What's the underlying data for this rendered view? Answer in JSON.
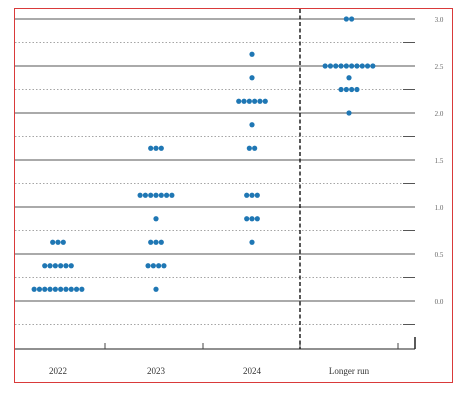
{
  "chart_data": {
    "type": "scatter",
    "title": "",
    "xlabel": "",
    "ylabel": "",
    "categories": [
      "2022",
      "2023",
      "2024",
      "Longer run"
    ],
    "ylim": [
      -0.45,
      3.0
    ],
    "yticks": [
      "0.0",
      "0.5",
      "1.0",
      "1.5",
      "2.0",
      "2.5",
      "3.0"
    ],
    "minor_step": 0.25,
    "divider_after_category": "2024",
    "dot_color": "#1f77b4",
    "points": [
      {
        "category": "2022",
        "value": 0.125,
        "count": 10
      },
      {
        "category": "2022",
        "value": 0.375,
        "count": 6
      },
      {
        "category": "2022",
        "value": 0.625,
        "count": 3
      },
      {
        "category": "2023",
        "value": 0.125,
        "count": 1
      },
      {
        "category": "2023",
        "value": 0.375,
        "count": 4
      },
      {
        "category": "2023",
        "value": 0.625,
        "count": 3
      },
      {
        "category": "2023",
        "value": 0.875,
        "count": 1
      },
      {
        "category": "2023",
        "value": 1.125,
        "count": 7
      },
      {
        "category": "2023",
        "value": 1.625,
        "count": 3
      },
      {
        "category": "2024",
        "value": 0.625,
        "count": 1
      },
      {
        "category": "2024",
        "value": 0.875,
        "count": 3
      },
      {
        "category": "2024",
        "value": 1.125,
        "count": 3
      },
      {
        "category": "2024",
        "value": 1.625,
        "count": 2
      },
      {
        "category": "2024",
        "value": 1.875,
        "count": 1
      },
      {
        "category": "2024",
        "value": 2.125,
        "count": 6
      },
      {
        "category": "2024",
        "value": 2.375,
        "count": 1
      },
      {
        "category": "2024",
        "value": 2.625,
        "count": 1
      },
      {
        "category": "Longer run",
        "value": 2.0,
        "count": 1
      },
      {
        "category": "Longer run",
        "value": 2.25,
        "count": 4
      },
      {
        "category": "Longer run",
        "value": 2.375,
        "count": 1
      },
      {
        "category": "Longer run",
        "value": 2.5,
        "count": 10
      },
      {
        "category": "Longer run",
        "value": 3.0,
        "count": 2
      }
    ]
  }
}
